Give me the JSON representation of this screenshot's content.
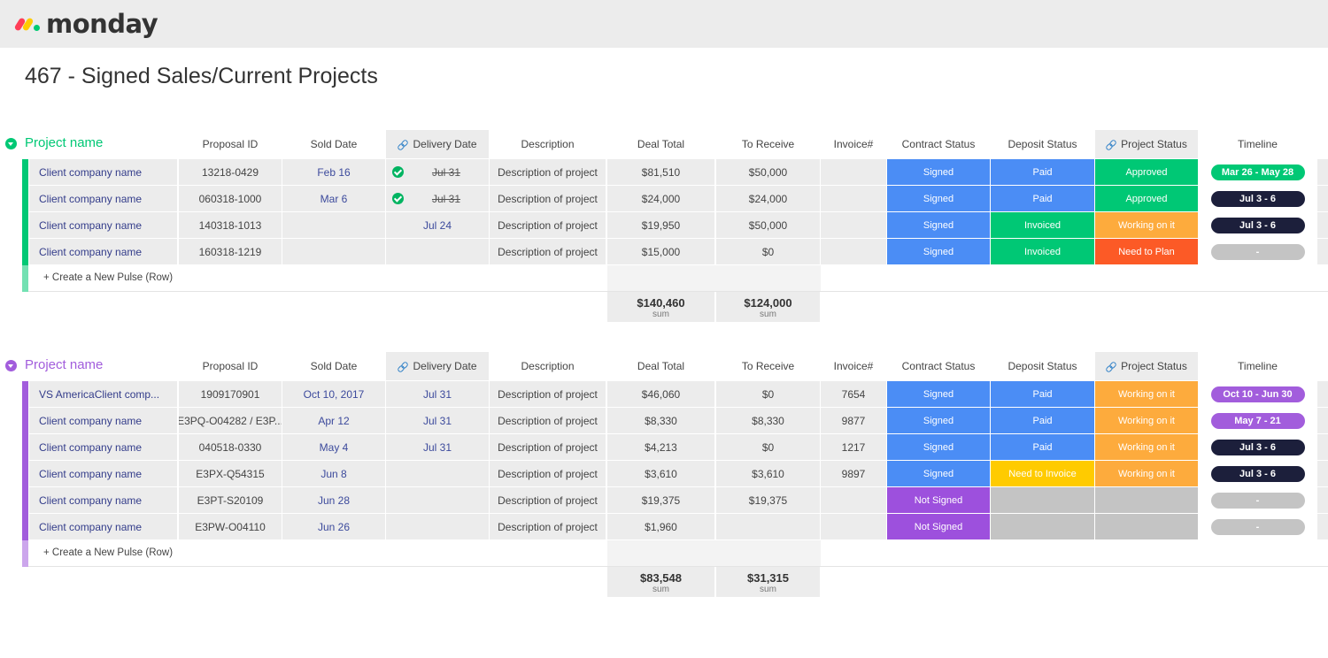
{
  "app": {
    "logo_text": "monday"
  },
  "board": {
    "title": "467 - Signed Sales/Current Projects"
  },
  "columns": [
    "Proposal ID",
    "Sold Date",
    "Delivery Date",
    "Description",
    "Deal Total",
    "To Receive",
    "Invoice#",
    "Contract Status",
    "Deposit Status",
    "Project Status",
    "Timeline"
  ],
  "colors": {
    "green_group": "#00c875",
    "purple_group": "#a25ddc",
    "signed": "#4b8df5",
    "paid": "#4b8df5",
    "invoiced": "#00c875",
    "approved": "#00c875",
    "working": "#fdab3d",
    "need_to_plan": "#fc5a26",
    "need_to_invoice": "#ffcb00",
    "not_signed": "#9d50dd",
    "empty": "#c4c4c4",
    "timeline_dark": "#1c1f3b",
    "timeline_green": "#00c875",
    "timeline_purple": "#a25ddc",
    "timeline_empty": "#c4c4c4"
  },
  "groups": [
    {
      "name": "Project name",
      "color": "#00c875",
      "add_label": "+ Create a New Pulse (Row)",
      "sum_label": "sum",
      "sum_deal": "$140,460",
      "sum_receive": "$124,000",
      "rows": [
        {
          "name": "Client company name",
          "proposal": "13218-0429",
          "sold": "Feb 16",
          "delivery": "Jul 31",
          "delivery_done": true,
          "description": "Description of project",
          "deal": "$81,510",
          "receive": "$50,000",
          "invoice": "",
          "contract": "Signed",
          "contract_color": "#4b8df5",
          "deposit": "Paid",
          "deposit_color": "#4b8df5",
          "project": "Approved",
          "project_color": "#00c875",
          "timeline": "Mar 26 - May 28",
          "timeline_color": "#00c875"
        },
        {
          "name": "Client company name",
          "proposal": "060318-1000",
          "sold": "Mar 6",
          "delivery": "Jul 31",
          "delivery_done": true,
          "description": "Description of project",
          "deal": "$24,000",
          "receive": "$24,000",
          "invoice": "",
          "contract": "Signed",
          "contract_color": "#4b8df5",
          "deposit": "Paid",
          "deposit_color": "#4b8df5",
          "project": "Approved",
          "project_color": "#00c875",
          "timeline": "Jul 3 - 6",
          "timeline_color": "#1c1f3b"
        },
        {
          "name": "Client company name",
          "proposal": "140318-1013",
          "sold": "",
          "delivery": "Jul 24",
          "delivery_done": false,
          "description": "Description of project",
          "deal": "$19,950",
          "receive": "$50,000",
          "invoice": "",
          "contract": "Signed",
          "contract_color": "#4b8df5",
          "deposit": "Invoiced",
          "deposit_color": "#00c875",
          "project": "Working on it",
          "project_color": "#fdab3d",
          "timeline": "Jul 3 - 6",
          "timeline_color": "#1c1f3b"
        },
        {
          "name": "Client company name",
          "proposal": "160318-1219",
          "sold": "",
          "delivery": "",
          "delivery_done": false,
          "description": "Description of project",
          "deal": "$15,000",
          "receive": "$0",
          "invoice": "",
          "contract": "Signed",
          "contract_color": "#4b8df5",
          "deposit": "Invoiced",
          "deposit_color": "#00c875",
          "project": "Need to Plan",
          "project_color": "#fc5a26",
          "timeline": "-",
          "timeline_color": "#c4c4c4"
        }
      ]
    },
    {
      "name": "Project name",
      "color": "#a25ddc",
      "add_label": "+ Create a New Pulse (Row)",
      "sum_label": "sum",
      "sum_deal": "$83,548",
      "sum_receive": "$31,315",
      "rows": [
        {
          "name": "VS AmericaClient comp...",
          "proposal": "1909170901",
          "sold": "Oct 10, 2017",
          "delivery": "Jul 31",
          "delivery_done": false,
          "description": "Description of project",
          "deal": "$46,060",
          "receive": "$0",
          "invoice": "7654",
          "contract": "Signed",
          "contract_color": "#4b8df5",
          "deposit": "Paid",
          "deposit_color": "#4b8df5",
          "project": "Working on it",
          "project_color": "#fdab3d",
          "timeline": "Oct 10 - Jun 30",
          "timeline_color": "#a25ddc"
        },
        {
          "name": "Client company name",
          "proposal": "E3PQ-O04282 / E3P...",
          "sold": "Apr 12",
          "delivery": "Jul 31",
          "delivery_done": false,
          "description": "Description of project",
          "deal": "$8,330",
          "receive": "$8,330",
          "invoice": "9877",
          "contract": "Signed",
          "contract_color": "#4b8df5",
          "deposit": "Paid",
          "deposit_color": "#4b8df5",
          "project": "Working on it",
          "project_color": "#fdab3d",
          "timeline": "May 7 - 21",
          "timeline_color": "#a25ddc"
        },
        {
          "name": "Client company name",
          "proposal": "040518-0330",
          "sold": "May 4",
          "delivery": "Jul 31",
          "delivery_done": false,
          "description": "Description of project",
          "deal": "$4,213",
          "receive": "$0",
          "invoice": "1217",
          "contract": "Signed",
          "contract_color": "#4b8df5",
          "deposit": "Paid",
          "deposit_color": "#4b8df5",
          "project": "Working on it",
          "project_color": "#fdab3d",
          "timeline": "Jul 3 - 6",
          "timeline_color": "#1c1f3b"
        },
        {
          "name": "Client company name",
          "proposal": "E3PX-Q54315",
          "sold": "Jun 8",
          "delivery": "",
          "delivery_done": false,
          "description": "Description of project",
          "deal": "$3,610",
          "receive": "$3,610",
          "invoice": "9897",
          "contract": "Signed",
          "contract_color": "#4b8df5",
          "deposit": "Need to Invoice",
          "deposit_color": "#ffcb00",
          "project": "Working on it",
          "project_color": "#fdab3d",
          "timeline": "Jul 3 - 6",
          "timeline_color": "#1c1f3b"
        },
        {
          "name": "Client company name",
          "proposal": "E3PT-S20109",
          "sold": "Jun 28",
          "delivery": "",
          "delivery_done": false,
          "description": "Description of project",
          "deal": "$19,375",
          "receive": "$19,375",
          "invoice": "",
          "contract": "Not Signed",
          "contract_color": "#9d50dd",
          "deposit": "",
          "deposit_color": "#c4c4c4",
          "project": "",
          "project_color": "#c4c4c4",
          "timeline": "-",
          "timeline_color": "#c4c4c4"
        },
        {
          "name": "Client company name",
          "proposal": "E3PW-O04110",
          "sold": "Jun 26",
          "delivery": "",
          "delivery_done": false,
          "description": "Description of project",
          "deal": "$1,960",
          "receive": "",
          "invoice": "",
          "contract": "Not Signed",
          "contract_color": "#9d50dd",
          "deposit": "",
          "deposit_color": "#c4c4c4",
          "project": "",
          "project_color": "#c4c4c4",
          "timeline": "-",
          "timeline_color": "#c4c4c4"
        }
      ]
    }
  ]
}
